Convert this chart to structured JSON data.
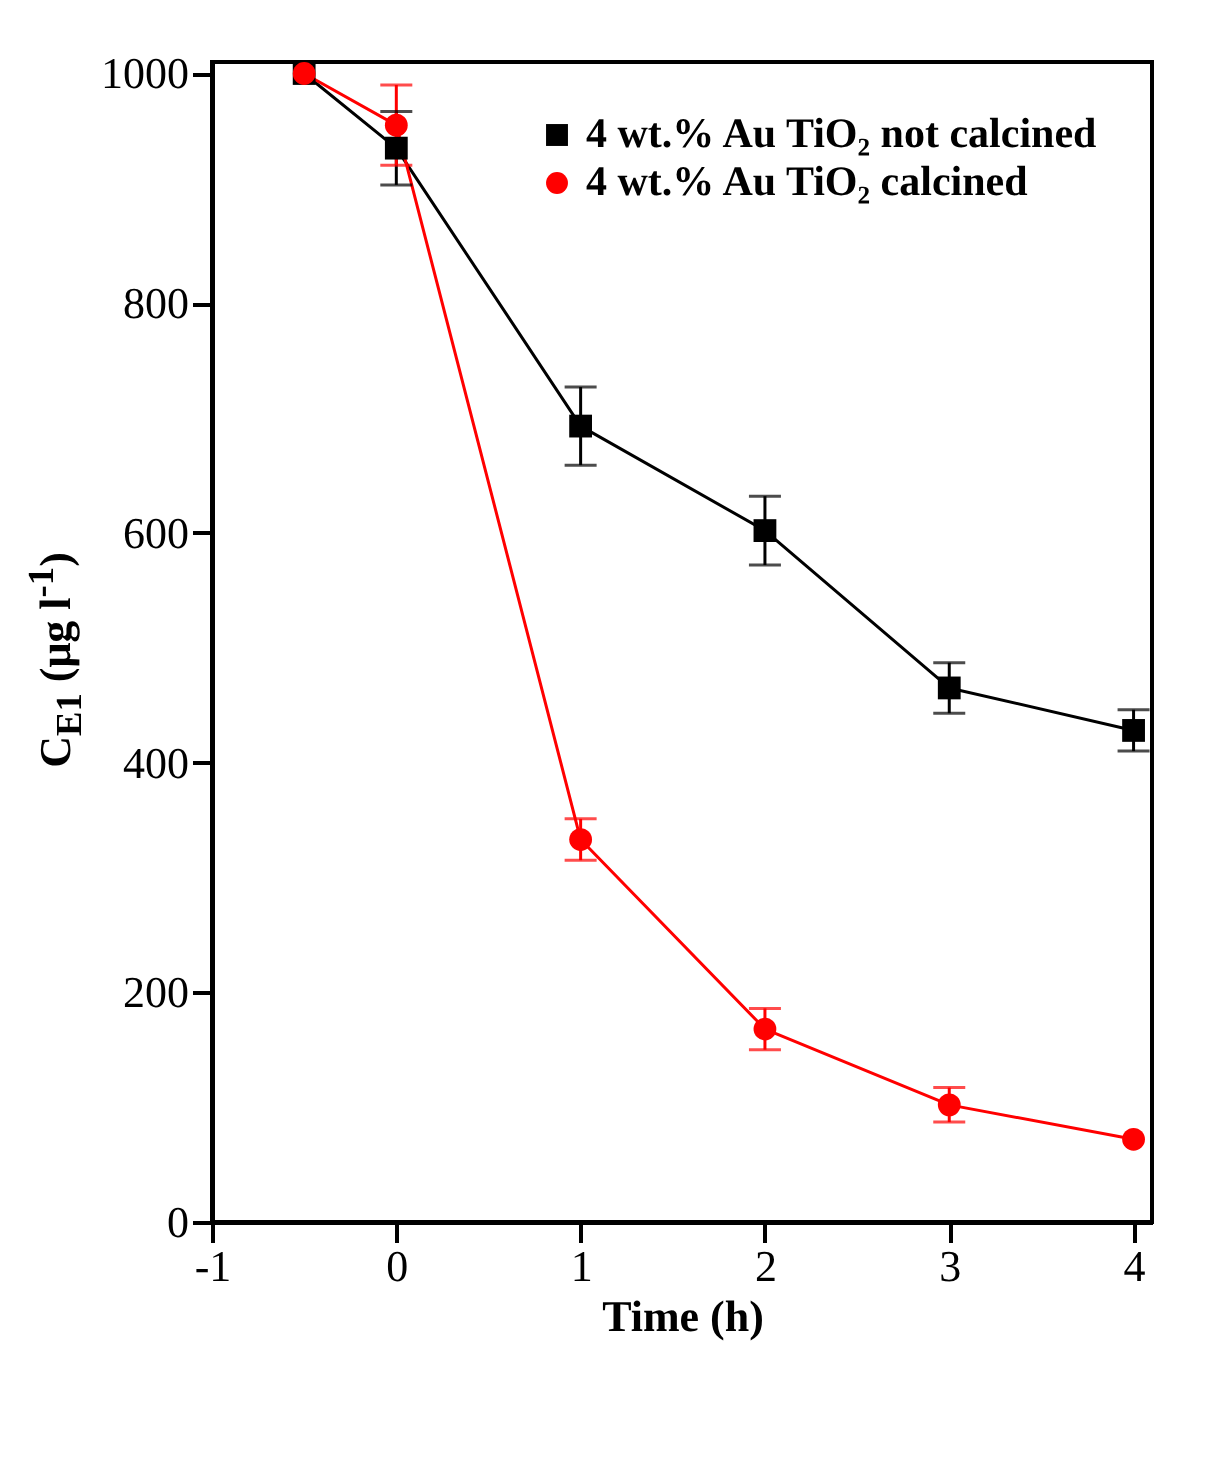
{
  "chart_data": {
    "type": "line",
    "xlabel": "Time (h)",
    "ylabel": "C$_{E1}$ (μg l$^{-1}$)",
    "x": [
      -0.5,
      0,
      1,
      2,
      3,
      4
    ],
    "series": [
      {
        "name": "4 wt.% Au TiO₂ not calcined",
        "color": "#000000",
        "marker": "square",
        "values": [
          1000,
          935,
          693,
          602,
          465,
          428
        ],
        "errors": [
          null,
          32,
          34,
          30,
          22,
          18
        ]
      },
      {
        "name": "4 wt.% Au TiO₂ calcined",
        "color": "#ff0000",
        "marker": "circle",
        "values": [
          1000,
          955,
          333,
          168,
          102,
          72
        ],
        "errors": [
          null,
          35,
          18,
          18,
          15,
          null
        ]
      }
    ],
    "xlim": [
      -1,
      4.1
    ],
    "xticks": [
      -1,
      0,
      1,
      2,
      3,
      4
    ],
    "ylim": [
      0,
      1010
    ],
    "yticks": [
      0,
      200,
      400,
      600,
      800,
      1000
    ],
    "legend": "top right",
    "grid": false,
    "line_style": "solid"
  }
}
